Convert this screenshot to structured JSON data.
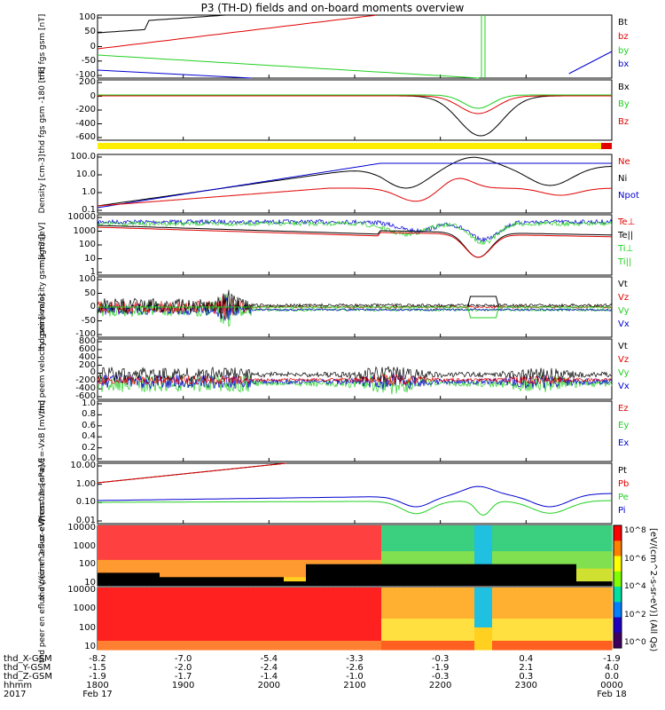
{
  "title": "P3 (TH-D) fields and on-board moments overview",
  "colors": {
    "black": "#000000",
    "red": "#e00000",
    "green": "#20d020",
    "blue": "#0000d0",
    "yellow": "#ffee00"
  },
  "chart_data": [
    {
      "type": "line",
      "ylabel": "thd fgs gsm [nT]",
      "yticks": [
        "100",
        "50",
        "0",
        "-50",
        "-100"
      ],
      "ylim": [
        -100,
        110
      ],
      "series": [
        {
          "name": "Bt",
          "color": "#000000"
        },
        {
          "name": "bz",
          "color": "#e00000"
        },
        {
          "name": "by",
          "color": "#20d020"
        },
        {
          "name": "bx",
          "color": "#0000d0"
        }
      ]
    },
    {
      "type": "line",
      "ylabel": "thd fgs gsm -180 [nT]",
      "yticks": [
        "200",
        "0",
        "-200",
        "-400",
        "-600"
      ],
      "ylim": [
        -700,
        200
      ],
      "series": [
        {
          "name": "Bz",
          "color": "#e00000"
        },
        {
          "name": "Bx",
          "color": "#000000"
        },
        {
          "name": "By",
          "color": "#20d020"
        }
      ],
      "legend_labels": [
        "Bx",
        "By",
        "Bz"
      ]
    },
    {
      "type": "line",
      "ylabel": "Density [cm-3]",
      "yticks": [
        "100.0",
        "10.0",
        "1.0",
        "0.1"
      ],
      "yscale": "log",
      "series": [
        {
          "name": "Ne",
          "color": "#e00000"
        },
        {
          "name": "Ni",
          "color": "#000000"
        },
        {
          "name": "Npot",
          "color": "#0000d0"
        }
      ]
    },
    {
      "type": "line",
      "ylabel": "magt3 [eV]",
      "yticks": [
        "10000",
        "1000",
        "100",
        "10",
        "1"
      ],
      "yscale": "log",
      "series": [
        {
          "name": "Te⊥",
          "color": "#e00000"
        },
        {
          "name": "Te||",
          "color": "#000000"
        },
        {
          "name": "Ti⊥",
          "color": "#20d020"
        },
        {
          "name": "Ti||",
          "color": "#20d020"
        }
      ]
    },
    {
      "type": "line",
      "ylabel": "thd peim velocity gsm [km/s]",
      "yticks": [
        "100",
        "50",
        "0",
        "-50",
        "-100"
      ],
      "ylim": [
        -100,
        100
      ],
      "series": [
        {
          "name": "Vt",
          "color": "#000000"
        },
        {
          "name": "Vz",
          "color": "#e00000"
        },
        {
          "name": "Vy",
          "color": "#20d020"
        },
        {
          "name": "Vx",
          "color": "#0000d0"
        }
      ]
    },
    {
      "type": "line",
      "ylabel": "thd peem velocity gsm [km/s]",
      "yticks": [
        "800",
        "600",
        "400",
        "200",
        "0",
        "-200",
        "-400",
        "-600"
      ],
      "ylim": [
        -600,
        800
      ],
      "series": [
        {
          "name": "Vt",
          "color": "#000000"
        },
        {
          "name": "Vz",
          "color": "#e00000"
        },
        {
          "name": "Vy",
          "color": "#20d020"
        },
        {
          "name": "Vx",
          "color": "#0000d0"
        }
      ]
    },
    {
      "type": "line",
      "ylabel": "E=-VxB [mV/m]",
      "yticks": [
        "1.0",
        "0.8",
        "0.6",
        "0.4",
        "0.2",
        "0.0"
      ],
      "ylim": [
        0,
        1
      ],
      "series": [
        {
          "name": "Ez",
          "color": "#e00000"
        },
        {
          "name": "Ey",
          "color": "#20d020"
        },
        {
          "name": "Ex",
          "color": "#0000d0"
        }
      ]
    },
    {
      "type": "line",
      "ylabel": "Pressure [nPa]",
      "yticks": [
        "10.00",
        "1.00",
        "0.10",
        "0.01"
      ],
      "yscale": "log",
      "series": [
        {
          "name": "Pt",
          "color": "#000000"
        },
        {
          "name": "Pb",
          "color": "#e00000"
        },
        {
          "name": "Pe",
          "color": "#20d020"
        },
        {
          "name": "Pi",
          "color": "#0000d0"
        }
      ]
    },
    {
      "type": "heatmap",
      "ylabel": "thd peir en eflux eV/(cm^2-s-sr-eV)",
      "yticks": [
        "10000",
        "1000",
        "100",
        "10"
      ],
      "yscale": "log"
    },
    {
      "type": "heatmap",
      "ylabel": "thd peer en eflux eV/(cm^2-s-sr-eV)",
      "yticks": [
        "10000",
        "1000",
        "100",
        "10"
      ],
      "yscale": "log"
    }
  ],
  "colorbar": {
    "ticks": [
      "10^8",
      "10^6",
      "10^4",
      "10^2",
      "10^0"
    ],
    "label": "[eV/(cm^2-s-sr-eV)] (All Qs)"
  },
  "ephemeris": {
    "rows": [
      {
        "label": "thd_X-GSM",
        "values": [
          "-8.2",
          "-7.0",
          "-5.4",
          "-3.3",
          "-0.3",
          "0.4",
          "-1.9"
        ]
      },
      {
        "label": "thd_Y-GSM",
        "values": [
          "-1.5",
          "-2.0",
          "-2.4",
          "-2.6",
          "-1.9",
          "2.1",
          "4.0"
        ]
      },
      {
        "label": "thd_Z-GSM",
        "values": [
          "-1.9",
          "-1.7",
          "-1.4",
          "-1.0",
          "-0.3",
          "0.3",
          "0.0"
        ]
      },
      {
        "label": "hhmm",
        "values": [
          "1800",
          "1900",
          "2000",
          "2100",
          "2200",
          "2300",
          "0000"
        ]
      }
    ],
    "year": "2017",
    "dates": [
      "Feb 17",
      "Feb 18"
    ]
  }
}
